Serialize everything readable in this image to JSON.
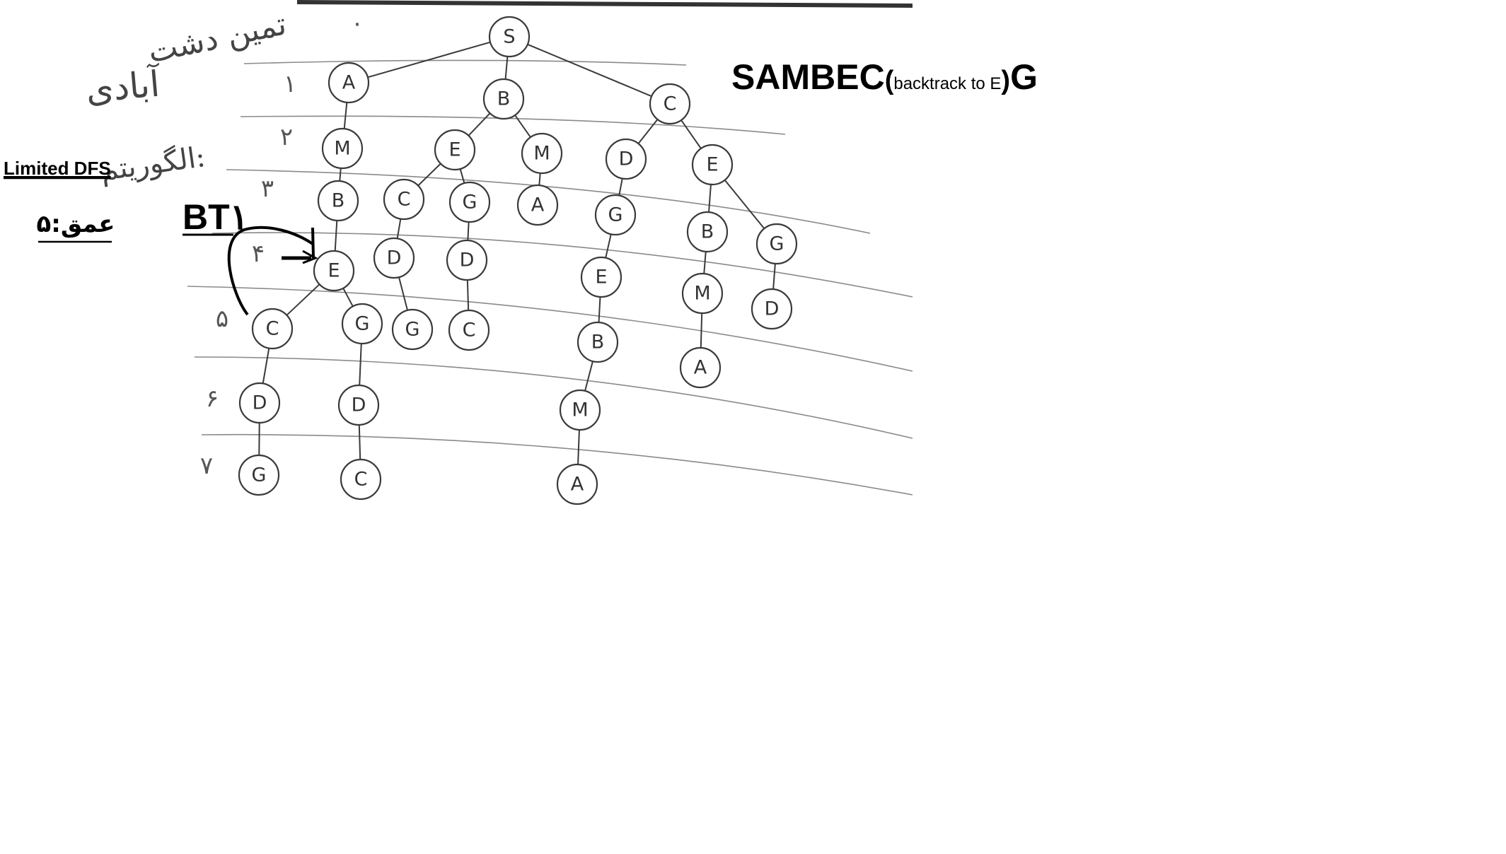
{
  "header": {
    "author_line1": "تمین دشت",
    "author_line2": "آبادی"
  },
  "labels": {
    "algorithm_persian": "الگوریتم:",
    "algorithm_name": "Limited DFS",
    "depth_label": "عمق:۵",
    "backtrack_label": "BT۱"
  },
  "result": {
    "path_main": "SAMBEC",
    "paren_open": "(",
    "note": "backtrack to E",
    "paren_close": ")",
    "goal": "G"
  },
  "levels": [
    "۰",
    "۱",
    "۲",
    "۳",
    "۴",
    "۵",
    "۶",
    "۷"
  ],
  "tree": {
    "nodes": [
      {
        "id": "S",
        "label": "S"
      },
      {
        "id": "A1",
        "label": "A"
      },
      {
        "id": "B1",
        "label": "B"
      },
      {
        "id": "C1",
        "label": "C"
      },
      {
        "id": "M1",
        "label": "M"
      },
      {
        "id": "E1",
        "label": "E"
      },
      {
        "id": "M2",
        "label": "M"
      },
      {
        "id": "D1",
        "label": "D"
      },
      {
        "id": "E2",
        "label": "E"
      },
      {
        "id": "B2",
        "label": "B"
      },
      {
        "id": "C2",
        "label": "C"
      },
      {
        "id": "G1",
        "label": "G"
      },
      {
        "id": "A2",
        "label": "A"
      },
      {
        "id": "G2",
        "label": "G"
      },
      {
        "id": "B3",
        "label": "B"
      },
      {
        "id": "G3",
        "label": "G"
      },
      {
        "id": "E3",
        "label": "E"
      },
      {
        "id": "D2",
        "label": "D"
      },
      {
        "id": "D3",
        "label": "D"
      },
      {
        "id": "E4",
        "label": "E"
      },
      {
        "id": "M3",
        "label": "M"
      },
      {
        "id": "D4",
        "label": "D"
      },
      {
        "id": "C3",
        "label": "C"
      },
      {
        "id": "G4",
        "label": "G"
      },
      {
        "id": "G5",
        "label": "G"
      },
      {
        "id": "C4",
        "label": "C"
      },
      {
        "id": "B4",
        "label": "B"
      },
      {
        "id": "A3",
        "label": "A"
      },
      {
        "id": "D5",
        "label": "D"
      },
      {
        "id": "D6",
        "label": "D"
      },
      {
        "id": "M4",
        "label": "M"
      },
      {
        "id": "G6",
        "label": "G"
      },
      {
        "id": "C5",
        "label": "C"
      },
      {
        "id": "A4",
        "label": "A"
      }
    ],
    "edges": [
      [
        "S",
        "A1"
      ],
      [
        "S",
        "B1"
      ],
      [
        "S",
        "C1"
      ],
      [
        "A1",
        "M1"
      ],
      [
        "M1",
        "B2"
      ],
      [
        "B2",
        "E4"
      ],
      [
        "E4",
        "C3"
      ],
      [
        "E4",
        "G4"
      ],
      [
        "C3",
        "D5"
      ],
      [
        "D5",
        "G6"
      ],
      [
        "G4",
        "D6"
      ],
      [
        "D6",
        "C5"
      ],
      [
        "B1",
        "E1"
      ],
      [
        "B1",
        "M2"
      ],
      [
        "E1",
        "C2"
      ],
      [
        "E1",
        "G1"
      ],
      [
        "C2",
        "D2"
      ],
      [
        "D2",
        "G5"
      ],
      [
        "G1",
        "D3"
      ],
      [
        "D3",
        "C4"
      ],
      [
        "M2",
        "A2"
      ],
      [
        "C1",
        "D1"
      ],
      [
        "C1",
        "E2"
      ],
      [
        "D1",
        "G2"
      ],
      [
        "G2",
        "E3"
      ],
      [
        "E3",
        "B4"
      ],
      [
        "B4",
        "M4"
      ],
      [
        "M4",
        "A4"
      ],
      [
        "E2",
        "B3"
      ],
      [
        "E2",
        "G3"
      ],
      [
        "B3",
        "M3"
      ],
      [
        "M3",
        "A3"
      ],
      [
        "G3",
        "D4"
      ]
    ]
  }
}
